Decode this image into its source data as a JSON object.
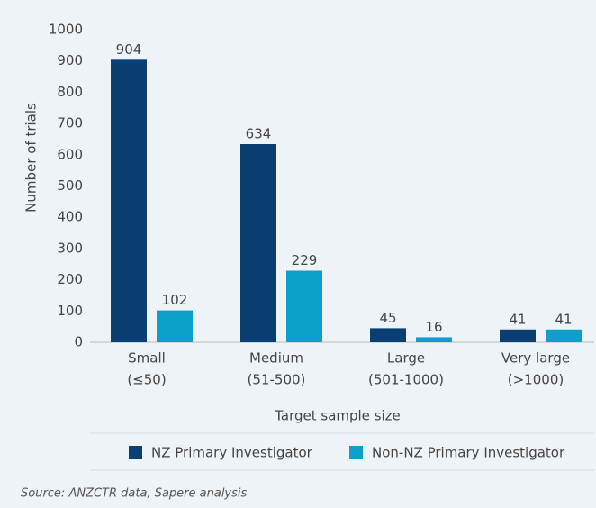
{
  "chart_data": {
    "type": "bar",
    "categories": [
      [
        "Small",
        "(≤50)"
      ],
      [
        "Medium",
        "(51-500)"
      ],
      [
        "Large",
        "(501-1000)"
      ],
      [
        "Very large",
        "(>1000)"
      ]
    ],
    "series": [
      {
        "name": "NZ Primary Investigator",
        "color": "#0b3f74",
        "values": [
          904,
          634,
          45,
          41
        ]
      },
      {
        "name": "Non-NZ Primary Investigator",
        "color": "#0aa0c9",
        "values": [
          102,
          229,
          16,
          41
        ]
      }
    ],
    "ylabel": "Number of trials",
    "xlabel": "Target sample size",
    "ylim": [
      0,
      1000
    ],
    "yticks": [
      0,
      100,
      200,
      300,
      400,
      500,
      600,
      700,
      800,
      900,
      1000
    ],
    "legend": "bottom",
    "source": "Source: ANZCTR data, Sapere analysis"
  }
}
